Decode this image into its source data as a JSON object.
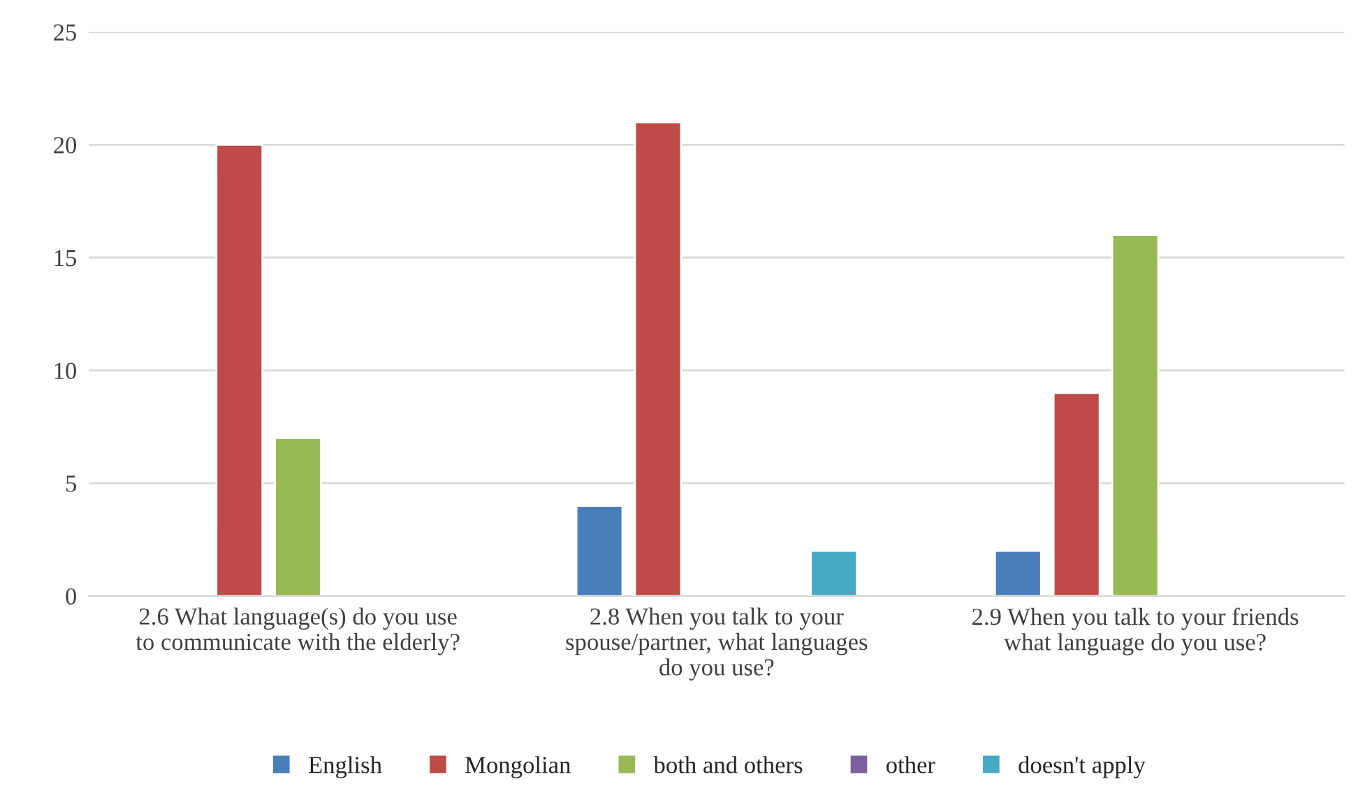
{
  "chart_data": {
    "type": "bar",
    "categories": [
      "2.6 What language(s) do you use\nto communicate with the elderly?",
      "2.8 When you talk to your\nspouse/partner, what languages\ndo you use?",
      "2.9 When you talk to your friends\nwhat language do you use?"
    ],
    "series": [
      {
        "name": "English",
        "color": "#4a7ebb",
        "values": [
          0,
          4,
          2
        ]
      },
      {
        "name": "Mongolian",
        "color": "#be4b48",
        "values": [
          20,
          21,
          9
        ]
      },
      {
        "name": "both and others",
        "color": "#98b954",
        "values": [
          7,
          0,
          16
        ]
      },
      {
        "name": "other",
        "color": "#7d60a0",
        "values": [
          0,
          0,
          0
        ]
      },
      {
        "name": "doesn't apply",
        "color": "#46aac5",
        "values": [
          0,
          2,
          0
        ]
      }
    ],
    "ylim": [
      0,
      25
    ],
    "yticks": [
      0,
      5,
      10,
      15,
      20,
      25
    ],
    "grid": "y",
    "legend": "bottom"
  }
}
